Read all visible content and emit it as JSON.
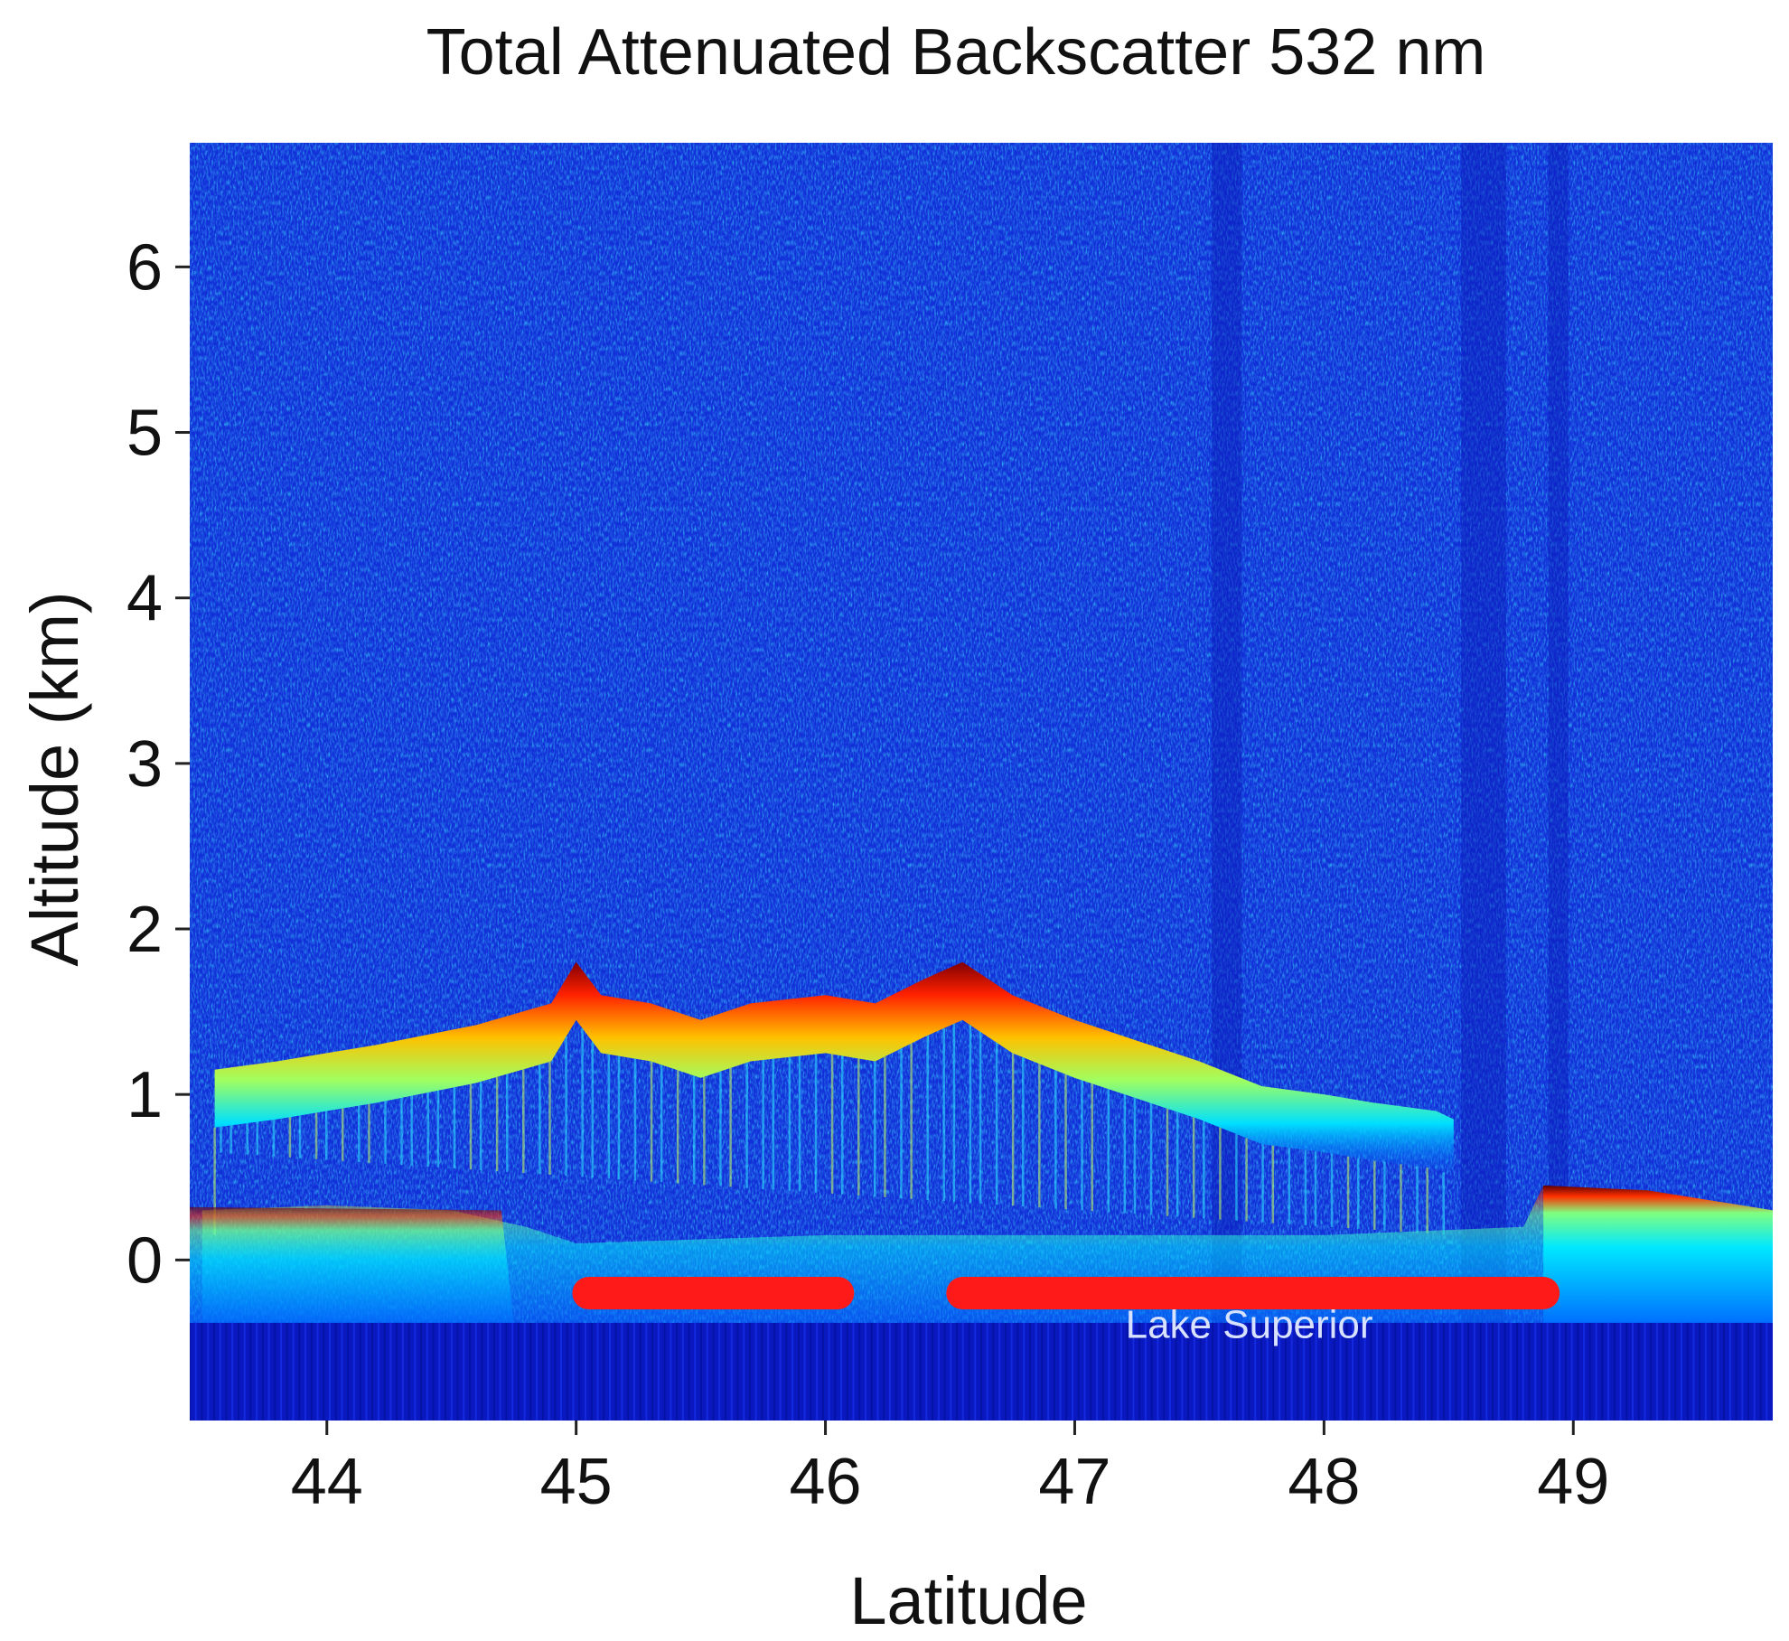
{
  "chart_data": {
    "type": "heatmap",
    "title": "Total Attenuated Backscatter 532 nm",
    "xlabel": "Latitude",
    "ylabel": "Altitude (km)",
    "xlim": [
      43.45,
      49.8
    ],
    "ylim": [
      -0.97,
      6.75
    ],
    "x_ticks": [
      44,
      45,
      46,
      47,
      48,
      49
    ],
    "y_ticks": [
      0,
      1,
      2,
      3,
      4,
      5,
      6
    ],
    "grid": false,
    "legend": "none",
    "colormap": [
      "#00007f",
      "#0000ff",
      "#0080ff",
      "#00ffff",
      "#80ff80",
      "#ffff00",
      "#ff8000",
      "#ff0000",
      "#800000"
    ],
    "background_color": "#1230d8",
    "surface": {
      "color": "#0a18c0",
      "top_altitude_km": -0.38
    },
    "cloud_layer": {
      "top_altitude_km": [
        [
          43.55,
          1.15
        ],
        [
          43.8,
          1.2
        ],
        [
          44.2,
          1.3
        ],
        [
          44.6,
          1.42
        ],
        [
          44.9,
          1.55
        ],
        [
          45.0,
          1.8
        ],
        [
          45.1,
          1.6
        ],
        [
          45.3,
          1.55
        ],
        [
          45.5,
          1.45
        ],
        [
          45.7,
          1.55
        ],
        [
          46.0,
          1.6
        ],
        [
          46.2,
          1.55
        ],
        [
          46.4,
          1.7
        ],
        [
          46.55,
          1.8
        ],
        [
          46.75,
          1.6
        ],
        [
          47.0,
          1.45
        ],
        [
          47.2,
          1.35
        ],
        [
          47.5,
          1.2
        ],
        [
          47.75,
          1.05
        ],
        [
          48.0,
          1.0
        ],
        [
          48.2,
          0.95
        ],
        [
          48.45,
          0.9
        ],
        [
          48.52,
          0.85
        ]
      ],
      "thickness_km": 0.35
    },
    "surface_return": {
      "altitude_km": [
        [
          43.5,
          0.3
        ],
        [
          44.0,
          0.33
        ],
        [
          44.5,
          0.3
        ],
        [
          44.8,
          0.2
        ],
        [
          45.0,
          0.1
        ],
        [
          46.0,
          0.15
        ],
        [
          47.0,
          0.15
        ],
        [
          48.0,
          0.15
        ],
        [
          48.8,
          0.2
        ],
        [
          48.88,
          0.45
        ],
        [
          49.3,
          0.42
        ],
        [
          49.8,
          0.3
        ]
      ]
    },
    "annotation_bars": [
      {
        "x_start": 45.05,
        "x_end": 46.05,
        "altitude_km": -0.2,
        "color": "#ff1a1a"
      },
      {
        "x_start": 46.55,
        "x_end": 48.88,
        "altitude_km": -0.2,
        "color": "#ff1a1a"
      }
    ],
    "annotations": [
      {
        "text": "Lake Superior",
        "x": 47.7,
        "altitude_km": -0.47,
        "color": "#d8e2ff"
      }
    ]
  }
}
